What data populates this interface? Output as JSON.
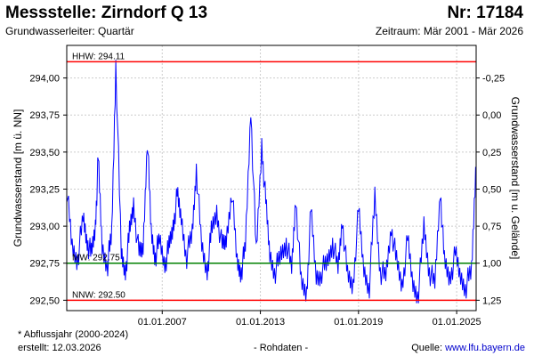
{
  "header": {
    "title": "Messstelle: Zirndorf Q 13",
    "nr": "Nr: 17184",
    "aquifer": "Grundwasserleiter: Quartär",
    "period": "Zeitraum: Mär 2001 - Mär 2026"
  },
  "footer": {
    "footnote": "* Abflussjahr (2000-2024)",
    "created": "erstellt:  12.03.2026",
    "rawdata": "- Rohdaten -",
    "source_prefix": "Quelle: ",
    "source_link": "www.lfu.bayern.de"
  },
  "colors": {
    "series": "#0000ff",
    "hhw": "#ff0000",
    "nnw": "#ff0000",
    "mw": "#008000",
    "grid": "#cccccc"
  },
  "chart_data": {
    "type": "line",
    "ylabel": "Grundwasserstand [m ü. NN]",
    "ylabel_right": "Grundwasserstand [m u. Gelände]",
    "ylim": [
      292.43,
      294.22
    ],
    "xlim": [
      "2001-03-01",
      "2026-03-12"
    ],
    "yticks": [
      292.5,
      292.75,
      293.0,
      293.25,
      293.5,
      293.75,
      294.0
    ],
    "ytick_labels": [
      "292,50",
      "292,75",
      "293,00",
      "293,25",
      "293,50",
      "293,75",
      "294,00"
    ],
    "yticks_right": [
      1.25,
      1.0,
      0.75,
      0.5,
      0.25,
      0.0,
      -0.25
    ],
    "ytick_right_labels": [
      "1,25",
      "1,00",
      "0,75",
      "0,50",
      "0,25",
      "0,00",
      "-0,25"
    ],
    "xticks": [
      "2007-01-01",
      "2013-01-01",
      "2019-01-01",
      "2025-01-01"
    ],
    "xtick_labels": [
      "01.01.2007",
      "01.01.2013",
      "01.01.2019",
      "01.01.2025"
    ],
    "grid": true,
    "reference_lines": [
      {
        "label": "HHW: 294.11",
        "value": 294.11
      },
      {
        "label": "MW: 292.75",
        "value": 292.75
      },
      {
        "label": "NNW: 292.50",
        "value": 292.5
      }
    ],
    "series": [
      {
        "x": [
          "2001-03",
          "2001-07",
          "2001-11",
          "2002-03",
          "2002-06",
          "2002-09",
          "2002-12",
          "2003-02",
          "2003-05",
          "2003-09",
          "2003-12",
          "2004-03",
          "2004-07",
          "2004-10",
          "2005-01",
          "2005-04",
          "2005-08",
          "2005-11",
          "2006-02",
          "2006-05",
          "2006-08",
          "2006-11",
          "2007-03",
          "2007-06",
          "2007-09",
          "2007-12",
          "2008-03",
          "2008-07",
          "2008-11",
          "2009-02",
          "2009-06",
          "2009-10",
          "2010-01",
          "2010-05",
          "2010-09",
          "2010-12",
          "2011-04",
          "2011-08",
          "2011-11",
          "2012-02",
          "2012-06",
          "2012-10",
          "2013-02",
          "2013-05",
          "2013-08",
          "2013-12",
          "2014-04",
          "2014-08",
          "2014-12",
          "2015-03",
          "2015-07",
          "2015-11",
          "2016-02",
          "2016-06",
          "2016-10",
          "2017-02",
          "2017-06",
          "2017-10",
          "2018-01",
          "2018-05",
          "2018-09",
          "2019-01",
          "2019-05",
          "2019-09",
          "2020-01",
          "2020-05",
          "2020-09",
          "2021-01",
          "2021-05",
          "2021-09",
          "2022-01",
          "2022-05",
          "2022-09",
          "2023-01",
          "2023-05",
          "2023-09",
          "2024-01",
          "2024-04",
          "2024-08",
          "2024-12",
          "2025-04",
          "2025-08",
          "2025-12",
          "2026-03"
        ],
        "y": [
          293.25,
          292.85,
          292.78,
          293.05,
          292.9,
          292.8,
          293.0,
          293.45,
          292.85,
          292.75,
          292.95,
          294.1,
          292.8,
          292.7,
          292.95,
          293.15,
          292.8,
          292.85,
          293.6,
          292.95,
          292.8,
          292.9,
          292.75,
          292.85,
          293.0,
          293.2,
          293.05,
          292.8,
          292.95,
          293.4,
          292.85,
          292.7,
          292.95,
          293.1,
          292.85,
          292.9,
          293.25,
          292.75,
          292.7,
          292.85,
          293.8,
          292.8,
          293.55,
          293.15,
          292.8,
          292.7,
          292.8,
          292.9,
          292.7,
          293.2,
          292.6,
          292.55,
          293.1,
          292.65,
          292.7,
          292.75,
          292.9,
          292.7,
          293.05,
          292.65,
          292.6,
          293.1,
          292.7,
          292.6,
          293.2,
          292.7,
          292.65,
          293.0,
          292.75,
          292.6,
          292.9,
          292.6,
          292.55,
          293.0,
          292.7,
          292.6,
          293.25,
          292.75,
          292.65,
          292.8,
          292.65,
          292.6,
          292.7,
          293.4
        ]
      }
    ]
  }
}
